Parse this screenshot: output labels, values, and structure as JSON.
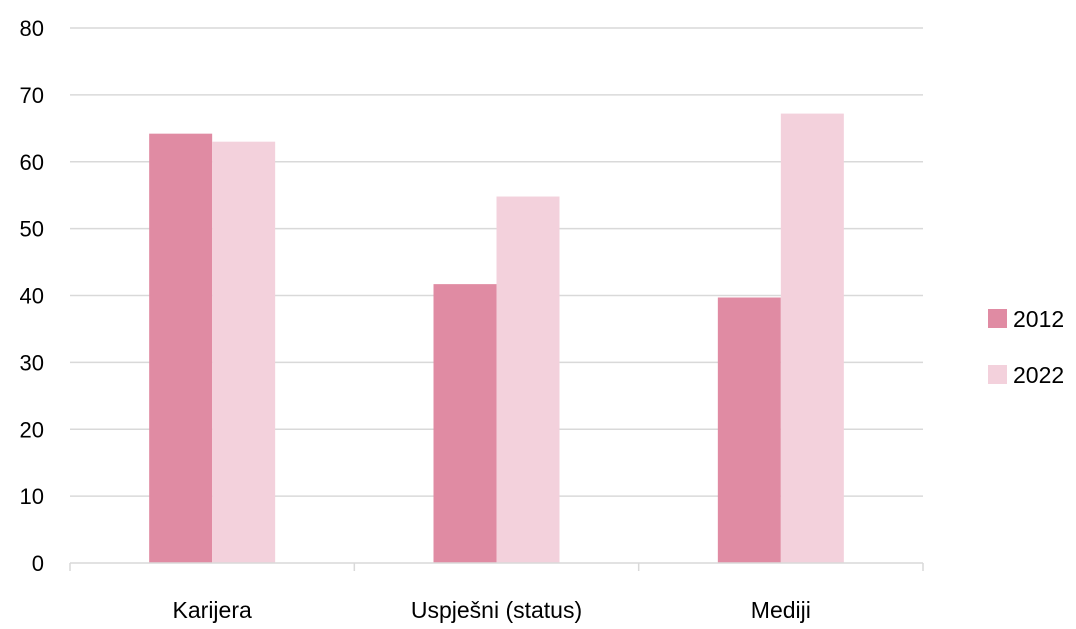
{
  "chart_data": {
    "type": "bar",
    "title": "",
    "xlabel": "",
    "ylabel": "",
    "categories": [
      "Karijera",
      "Uspješni (status)",
      "Mediji"
    ],
    "series": [
      {
        "name": "2012",
        "values": [
          64.2,
          41.7,
          39.7
        ],
        "color": "#e08ba3"
      },
      {
        "name": "2022",
        "values": [
          63.0,
          54.8,
          67.2
        ],
        "color": "#f3d1dc"
      }
    ],
    "ylim": [
      0,
      80
    ],
    "yticks": [
      "0",
      "10",
      "20",
      "30",
      "40",
      "50",
      "60",
      "70",
      "80"
    ],
    "grid": true,
    "gridColor": "#d9d9d9",
    "legend": "right"
  }
}
